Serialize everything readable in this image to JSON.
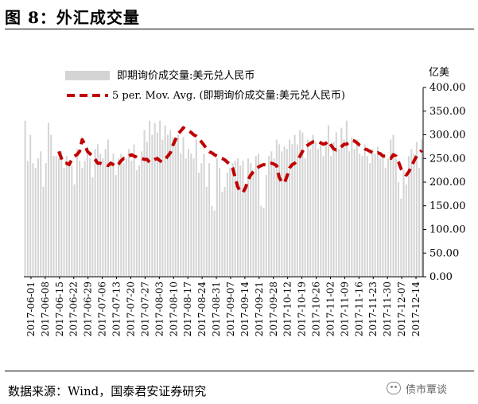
{
  "figure": {
    "title": "图 8：外汇成交量",
    "source": "数据来源：Wind，国泰君安证券研究",
    "watermark": "债市覃谈"
  },
  "chart_data": {
    "type": "bar",
    "unit": "亿美",
    "ylim": [
      0,
      400
    ],
    "yticks": [
      "0.00",
      "50.00",
      "100.00",
      "150.00",
      "200.00",
      "250.00",
      "300.00",
      "350.00",
      "400.00"
    ],
    "legend_position": "top-left",
    "xticklabels": [
      "2017-06-01",
      "2017-06-08",
      "2017-06-15",
      "2017-06-22",
      "2017-06-29",
      "2017-07-06",
      "2017-07-13",
      "2017-07-20",
      "2017-07-27",
      "2017-08-03",
      "2017-08-10",
      "2017-08-17",
      "2017-08-24",
      "2017-08-31",
      "2017-09-07",
      "2017-09-14",
      "2017-09-21",
      "2017-09-28",
      "2017-10-12",
      "2017-10-19",
      "2017-10-26",
      "2017-11-02",
      "2017-11-09",
      "2017-11-16",
      "2017-11-23",
      "2017-11-30",
      "2017-12-07",
      "2017-12-14"
    ],
    "series": [
      {
        "name": "即期询价成交量:美元兑人民币",
        "type": "bar",
        "color": "#d4d4d4",
        "values": [
          330,
          245,
          300,
          240,
          230,
          250,
          265,
          190,
          240,
          325,
          300,
          255,
          255,
          250,
          265,
          230,
          255,
          245,
          235,
          195,
          270,
          245,
          230,
          245,
          275,
          250,
          210,
          270,
          280,
          260,
          250,
          270,
          290,
          245,
          260,
          215,
          250,
          260,
          240,
          250,
          270,
          245,
          280,
          225,
          235,
          265,
          310,
          285,
          330,
          300,
          325,
          305,
          330,
          290,
          320,
          300,
          310,
          295,
          285,
          300,
          260,
          295,
          250,
          270,
          260,
          250,
          290,
          220,
          240,
          260,
          190,
          240,
          150,
          140,
          250,
          230,
          180,
          190,
          220,
          230,
          240,
          245,
          250,
          235,
          245,
          190,
          250,
          240,
          220,
          255,
          260,
          150,
          145,
          215,
          255,
          265,
          250,
          290,
          280,
          265,
          275,
          270,
          290,
          280,
          300,
          280,
          310,
          305,
          250,
          290,
          270,
          300,
          285,
          270,
          280,
          255,
          280,
          320,
          255,
          285,
          305,
          270,
          315,
          290,
          330,
          265,
          295,
          270,
          290,
          260,
          255,
          280,
          255,
          240,
          270,
          260,
          275,
          250,
          260,
          230,
          250,
          290,
          300,
          250,
          200,
          165,
          225,
          195,
          255,
          270,
          260,
          285,
          230,
          290
        ]
      },
      {
        "name": "5 per. Mov. Avg. (即期询价成交量:美元兑人民币)",
        "type": "line",
        "color": "#c00000",
        "values": [
          265,
          250,
          240,
          240,
          237,
          248,
          255,
          258,
          265,
          290,
          280,
          265,
          260,
          255,
          248,
          240,
          240,
          238,
          237,
          235,
          240,
          237,
          233,
          238,
          245,
          250,
          250,
          255,
          258,
          255,
          253,
          250,
          250,
          248,
          248,
          242,
          245,
          248,
          250,
          245,
          243,
          248,
          255,
          262,
          278,
          290,
          302,
          308,
          315,
          310,
          308,
          305,
          300,
          297,
          292,
          285,
          278,
          270,
          264,
          262,
          258,
          255,
          252,
          250,
          247,
          242,
          238,
          230,
          210,
          190,
          180,
          178,
          188,
          205,
          215,
          222,
          228,
          232,
          235,
          237,
          236,
          240,
          240,
          238,
          235,
          210,
          200,
          198,
          213,
          230,
          237,
          240,
          245,
          255,
          265,
          275,
          278,
          282,
          285,
          285,
          286,
          283,
          280,
          282,
          287,
          278,
          270,
          268,
          270,
          275,
          280,
          280,
          285,
          288,
          287,
          283,
          278,
          275,
          270,
          268,
          265,
          262,
          260,
          262,
          260,
          255,
          255,
          252,
          250,
          258,
          255,
          243,
          228,
          220,
          215,
          222,
          233,
          245,
          255,
          262,
          267
        ]
      }
    ]
  }
}
